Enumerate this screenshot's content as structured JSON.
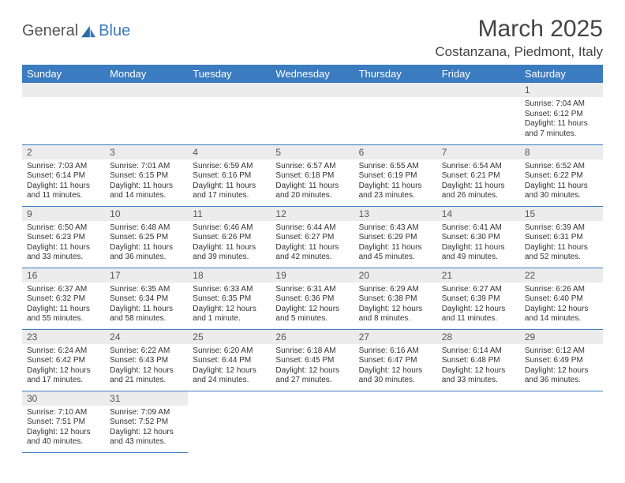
{
  "brand": {
    "part1": "General",
    "part2": "Blue"
  },
  "title": "March 2025",
  "location": "Costanzana, Piedmont, Italy",
  "colors": {
    "header_bg": "#3b7bbf",
    "header_fg": "#ffffff",
    "daynum_bg": "#ececec",
    "rule": "#3b7bbf",
    "text": "#333333",
    "brand_gray": "#555555",
    "brand_blue": "#3b7bbf"
  },
  "day_names": [
    "Sunday",
    "Monday",
    "Tuesday",
    "Wednesday",
    "Thursday",
    "Friday",
    "Saturday"
  ],
  "first_weekday_index": 6,
  "days": [
    {
      "n": 1,
      "sr": "7:04 AM",
      "ss": "6:12 PM",
      "dl": "11 hours and 7 minutes."
    },
    {
      "n": 2,
      "sr": "7:03 AM",
      "ss": "6:14 PM",
      "dl": "11 hours and 11 minutes."
    },
    {
      "n": 3,
      "sr": "7:01 AM",
      "ss": "6:15 PM",
      "dl": "11 hours and 14 minutes."
    },
    {
      "n": 4,
      "sr": "6:59 AM",
      "ss": "6:16 PM",
      "dl": "11 hours and 17 minutes."
    },
    {
      "n": 5,
      "sr": "6:57 AM",
      "ss": "6:18 PM",
      "dl": "11 hours and 20 minutes."
    },
    {
      "n": 6,
      "sr": "6:55 AM",
      "ss": "6:19 PM",
      "dl": "11 hours and 23 minutes."
    },
    {
      "n": 7,
      "sr": "6:54 AM",
      "ss": "6:21 PM",
      "dl": "11 hours and 26 minutes."
    },
    {
      "n": 8,
      "sr": "6:52 AM",
      "ss": "6:22 PM",
      "dl": "11 hours and 30 minutes."
    },
    {
      "n": 9,
      "sr": "6:50 AM",
      "ss": "6:23 PM",
      "dl": "11 hours and 33 minutes."
    },
    {
      "n": 10,
      "sr": "6:48 AM",
      "ss": "6:25 PM",
      "dl": "11 hours and 36 minutes."
    },
    {
      "n": 11,
      "sr": "6:46 AM",
      "ss": "6:26 PM",
      "dl": "11 hours and 39 minutes."
    },
    {
      "n": 12,
      "sr": "6:44 AM",
      "ss": "6:27 PM",
      "dl": "11 hours and 42 minutes."
    },
    {
      "n": 13,
      "sr": "6:43 AM",
      "ss": "6:29 PM",
      "dl": "11 hours and 45 minutes."
    },
    {
      "n": 14,
      "sr": "6:41 AM",
      "ss": "6:30 PM",
      "dl": "11 hours and 49 minutes."
    },
    {
      "n": 15,
      "sr": "6:39 AM",
      "ss": "6:31 PM",
      "dl": "11 hours and 52 minutes."
    },
    {
      "n": 16,
      "sr": "6:37 AM",
      "ss": "6:32 PM",
      "dl": "11 hours and 55 minutes."
    },
    {
      "n": 17,
      "sr": "6:35 AM",
      "ss": "6:34 PM",
      "dl": "11 hours and 58 minutes."
    },
    {
      "n": 18,
      "sr": "6:33 AM",
      "ss": "6:35 PM",
      "dl": "12 hours and 1 minute."
    },
    {
      "n": 19,
      "sr": "6:31 AM",
      "ss": "6:36 PM",
      "dl": "12 hours and 5 minutes."
    },
    {
      "n": 20,
      "sr": "6:29 AM",
      "ss": "6:38 PM",
      "dl": "12 hours and 8 minutes."
    },
    {
      "n": 21,
      "sr": "6:27 AM",
      "ss": "6:39 PM",
      "dl": "12 hours and 11 minutes."
    },
    {
      "n": 22,
      "sr": "6:26 AM",
      "ss": "6:40 PM",
      "dl": "12 hours and 14 minutes."
    },
    {
      "n": 23,
      "sr": "6:24 AM",
      "ss": "6:42 PM",
      "dl": "12 hours and 17 minutes."
    },
    {
      "n": 24,
      "sr": "6:22 AM",
      "ss": "6:43 PM",
      "dl": "12 hours and 21 minutes."
    },
    {
      "n": 25,
      "sr": "6:20 AM",
      "ss": "6:44 PM",
      "dl": "12 hours and 24 minutes."
    },
    {
      "n": 26,
      "sr": "6:18 AM",
      "ss": "6:45 PM",
      "dl": "12 hours and 27 minutes."
    },
    {
      "n": 27,
      "sr": "6:16 AM",
      "ss": "6:47 PM",
      "dl": "12 hours and 30 minutes."
    },
    {
      "n": 28,
      "sr": "6:14 AM",
      "ss": "6:48 PM",
      "dl": "12 hours and 33 minutes."
    },
    {
      "n": 29,
      "sr": "6:12 AM",
      "ss": "6:49 PM",
      "dl": "12 hours and 36 minutes."
    },
    {
      "n": 30,
      "sr": "7:10 AM",
      "ss": "7:51 PM",
      "dl": "12 hours and 40 minutes."
    },
    {
      "n": 31,
      "sr": "7:09 AM",
      "ss": "7:52 PM",
      "dl": "12 hours and 43 minutes."
    }
  ],
  "labels": {
    "sunrise": "Sunrise:",
    "sunset": "Sunset:",
    "daylight": "Daylight:"
  }
}
